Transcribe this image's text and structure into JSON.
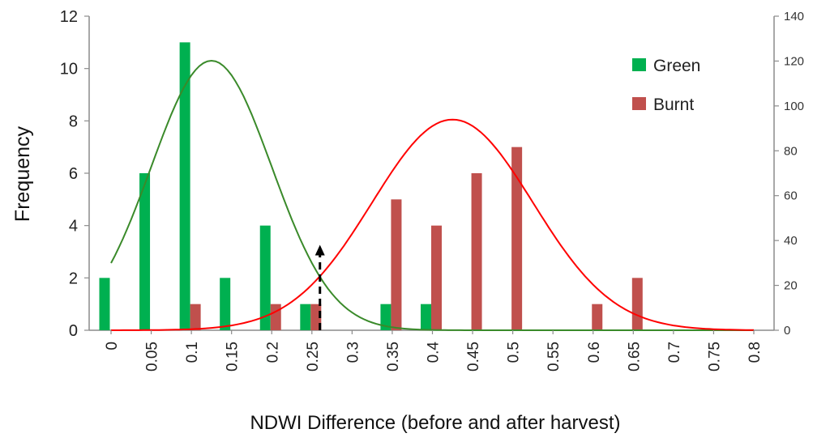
{
  "chart_data": {
    "type": "bar",
    "title": "",
    "xlabel": "NDWI Difference (before and after harvest)",
    "ylabel": "Frequency",
    "ylim": [
      0,
      12
    ],
    "y_ticks": [
      "0",
      "2",
      "4",
      "6",
      "8",
      "10",
      "12"
    ],
    "y2lim": [
      0,
      140
    ],
    "y2_ticks": [
      "0",
      "20",
      "40",
      "60",
      "80",
      "100",
      "120",
      "140"
    ],
    "categories": [
      "0",
      "0.05",
      "0.1",
      "0.15",
      "0.2",
      "0.25",
      "0.3",
      "0.35",
      "0.4",
      "0.45",
      "0.5",
      "0.55",
      "0.6",
      "0.65",
      "0.7",
      "0.75",
      "0.8"
    ],
    "series": [
      {
        "name": "Green",
        "color": "#00b050",
        "values": [
          2,
          6,
          11,
          2,
          4,
          1,
          0,
          1,
          1,
          0,
          0,
          0,
          0,
          0,
          0,
          0,
          0
        ]
      },
      {
        "name": "Burnt",
        "color": "#c0504d",
        "values": [
          0,
          0,
          1,
          0,
          1,
          1,
          0,
          5,
          4,
          6,
          7,
          0,
          1,
          2,
          0,
          0,
          0
        ]
      }
    ],
    "curves": [
      {
        "name": "Green fit",
        "color": "#3a8a2a",
        "mean": 0.125,
        "sd": 0.075,
        "peak": 10.3,
        "x_range": [
          0,
          0.8
        ]
      },
      {
        "name": "Burnt fit",
        "color": "#ff0000",
        "mean": 0.425,
        "sd": 0.1,
        "peak": 8.05,
        "x_range": [
          0,
          0.8
        ]
      }
    ],
    "threshold": {
      "x": 0.26,
      "y": 3.2,
      "style": "dashed arrow"
    },
    "legend": {
      "position": "top-right",
      "entries": [
        "Green",
        "Burnt"
      ]
    }
  }
}
